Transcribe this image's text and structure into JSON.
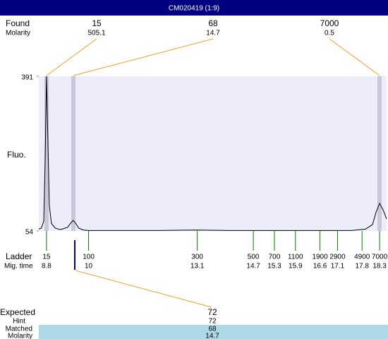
{
  "header": {
    "title": "CM020419 (1:9)"
  },
  "found": {
    "label": "Found",
    "molarity_label": "Molarity",
    "peaks": [
      {
        "size": 15,
        "molarity": 505.1
      },
      {
        "size": 68,
        "molarity": 14.7
      },
      {
        "size": 7000,
        "molarity": 0.5
      }
    ]
  },
  "chart_data": {
    "type": "line",
    "y_label": "Fluo.",
    "ylim": [
      54,
      391
    ],
    "yticks": [
      54,
      391
    ],
    "xlim": [
      8.58,
      18.5
    ],
    "color": "#000000",
    "background": "#ececfb",
    "x": [
      8.58,
      8.65,
      8.72,
      8.76,
      8.8,
      8.84,
      8.88,
      8.94,
      9.05,
      9.2,
      9.4,
      9.5,
      9.56,
      9.62,
      9.72,
      9.85,
      10,
      12,
      13.1,
      14,
      16,
      17.5,
      17.9,
      18.1,
      18.2,
      18.3,
      18.4,
      18.5
    ],
    "values": [
      58,
      60,
      75,
      200,
      391,
      250,
      110,
      70,
      60,
      57,
      62,
      72,
      77,
      72,
      60,
      56,
      55,
      55,
      56,
      55,
      55,
      55,
      58,
      68,
      95,
      114,
      100,
      80
    ]
  },
  "ladder": {
    "label": "Ladder",
    "time_label": "Mig. time",
    "sizes": [
      15,
      100,
      300,
      500,
      700,
      1100,
      1900,
      2900,
      4900,
      7000
    ],
    "times": [
      8.8,
      10,
      13.1,
      14.7,
      15.3,
      15.9,
      16.6,
      17.1,
      17.8,
      18.3
    ]
  },
  "expected": {
    "label": "Expected",
    "value": 72,
    "hint_label": "Hint",
    "hint": 72,
    "matched_label": "Matched",
    "matched": 68,
    "molarity_label": "Molarity",
    "molarity": 14.7
  }
}
